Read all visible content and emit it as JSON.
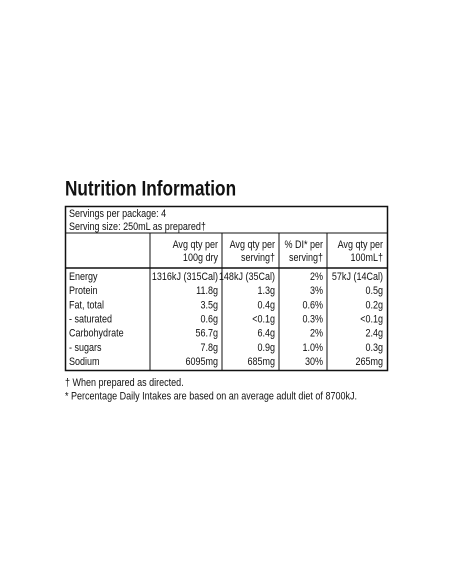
{
  "title": "Nutrition Information",
  "servings": [
    "Servings per package: 4",
    "Serving size: 250mL as prepared†"
  ],
  "table": {
    "header": [
      [
        "Avg qty per",
        "100g dry"
      ],
      [
        "Avg qty per",
        "serving†"
      ],
      [
        "% DI* per",
        "serving†"
      ],
      [
        "Avg qty per",
        "100mL†"
      ]
    ],
    "rows": [
      [
        "Energy",
        "1316kJ (315Cal)",
        "148kJ (35Cal)",
        "2%",
        "57kJ (14Cal)"
      ],
      [
        "Protein",
        "11.8g",
        "1.3g",
        "3%",
        "0.5g"
      ],
      [
        "Fat, total",
        "3.5g",
        "0.4g",
        "0.6%",
        "0.2g"
      ],
      [
        "- saturated",
        "0.6g",
        "<0.1g",
        "0.3%",
        "<0.1g"
      ],
      [
        "Carbohydrate",
        "56.7g",
        "6.4g",
        "2%",
        "2.4g"
      ],
      [
        "- sugars",
        "7.8g",
        "0.9g",
        "1.0%",
        "0.3g"
      ],
      [
        "Sodium",
        "6095mg",
        "685mg",
        "30%",
        "265mg"
      ]
    ]
  },
  "footnotes": [
    "† When prepared as directed.",
    "* Percentage Daily Intakes are based on an average adult diet of 8700kJ."
  ]
}
